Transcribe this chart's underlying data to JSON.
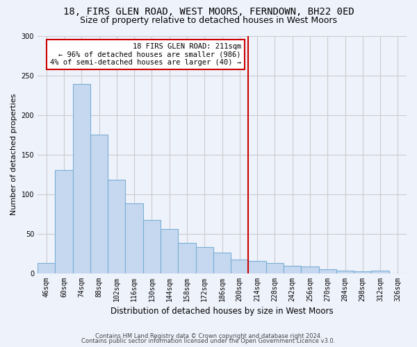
{
  "title1": "18, FIRS GLEN ROAD, WEST MOORS, FERNDOWN, BH22 0ED",
  "title2": "Size of property relative to detached houses in West Moors",
  "xlabel": "Distribution of detached houses by size in West Moors",
  "ylabel": "Number of detached properties",
  "footer1": "Contains HM Land Registry data © Crown copyright and database right 2024.",
  "footer2": "Contains public sector information licensed under the Open Government Licence v3.0.",
  "bar_color": "#c5d8f0",
  "bar_edge_color": "#7aafd4",
  "categories": [
    "46sqm",
    "60sqm",
    "74sqm",
    "88sqm",
    "102sqm",
    "116sqm",
    "130sqm",
    "144sqm",
    "158sqm",
    "172sqm",
    "186sqm",
    "200sqm",
    "214sqm",
    "228sqm",
    "242sqm",
    "256sqm",
    "270sqm",
    "284sqm",
    "298sqm",
    "312sqm",
    "326sqm"
  ],
  "values": [
    13,
    130,
    239,
    175,
    118,
    88,
    67,
    56,
    38,
    33,
    26,
    17,
    15,
    13,
    9,
    8,
    5,
    3,
    2,
    3,
    0
  ],
  "ylim": [
    0,
    300
  ],
  "yticks": [
    0,
    50,
    100,
    150,
    200,
    250,
    300
  ],
  "vline_color": "#cc0000",
  "annotation_line1": "18 FIRS GLEN ROAD: 211sqm",
  "annotation_line2": "← 96% of detached houses are smaller (986)",
  "annotation_line3": "4% of semi-detached houses are larger (40) →",
  "bg_color": "#eef2fb",
  "grid_color": "#cccccc",
  "title1_fontsize": 10,
  "title2_fontsize": 9,
  "ylabel_fontsize": 8,
  "xlabel_fontsize": 8.5,
  "tick_fontsize": 7
}
